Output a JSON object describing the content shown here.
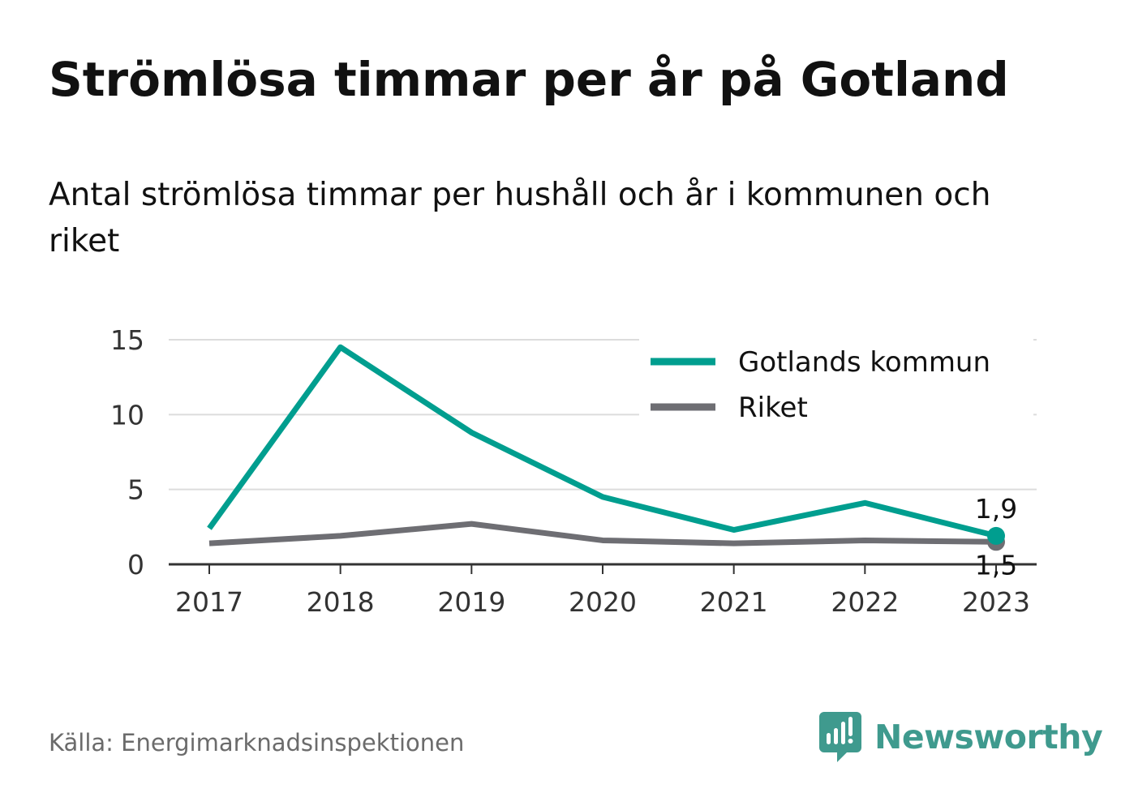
{
  "title": "Strömlösa timmar per år på Gotland",
  "subtitle": "Antal strömlösa timmar per hushåll och år i kommunen och riket",
  "source": "Källa: Energimarknadsinspektionen",
  "brand": {
    "name": "Newsworthy",
    "icon": "newsworthy-logo-icon",
    "color": "#3f9a8e"
  },
  "chart_data": {
    "type": "line",
    "x": [
      "2017",
      "2018",
      "2019",
      "2020",
      "2021",
      "2022",
      "2023"
    ],
    "series": [
      {
        "name": "Gotlands kommun",
        "color": "#009e8f",
        "values": [
          2.4,
          14.5,
          8.8,
          4.5,
          2.3,
          4.1,
          1.9
        ],
        "end_label": "1,9"
      },
      {
        "name": "Riket",
        "color": "#6e6e73",
        "values": [
          1.4,
          1.9,
          2.7,
          1.6,
          1.4,
          1.6,
          1.5
        ],
        "end_label": "1,5"
      }
    ],
    "y_ticks": [
      "0",
      "5",
      "10",
      "15"
    ],
    "ylim": [
      0,
      15
    ],
    "grid": true,
    "legend_position": "top-right",
    "xlabel": "",
    "ylabel": ""
  }
}
